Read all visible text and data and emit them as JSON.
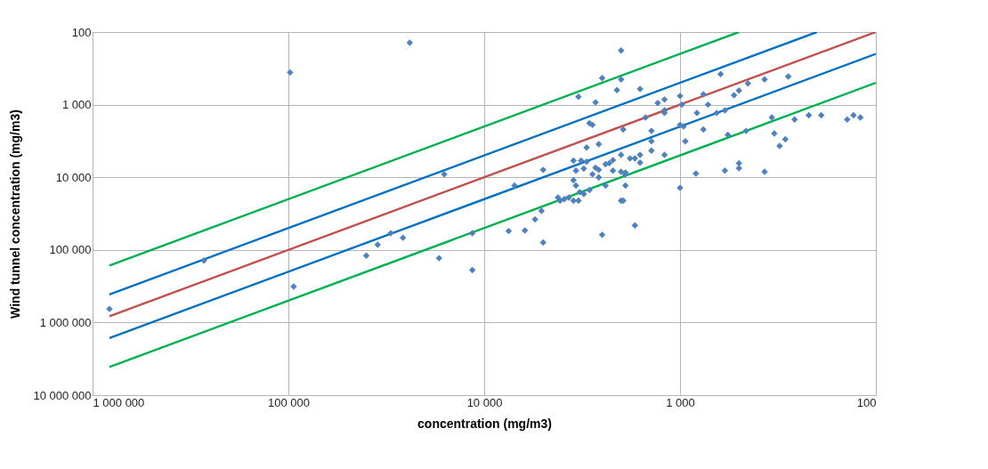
{
  "chart_data": {
    "type": "scatter",
    "xlabel": "concentration (mg/m3)",
    "ylabel": "Wind tunnel concentration (mg/m3)",
    "log": "xy",
    "grid": true,
    "xlim": [
      1000000,
      100
    ],
    "ylim": [
      10000000,
      100
    ],
    "xticks": [
      {
        "value": 1000000,
        "label": "1 000 000"
      },
      {
        "value": 100000,
        "label": "100 000"
      },
      {
        "value": 10000,
        "label": "10 000"
      },
      {
        "value": 1000,
        "label": "1 000"
      },
      100
    ],
    "yticks": [
      100,
      {
        "value": 1000,
        "label": "1 000"
      },
      {
        "value": 10000,
        "label": "10 000"
      },
      {
        "value": 100000,
        "label": "100 000"
      },
      {
        "value": 1000000,
        "label": "1 000 000"
      },
      {
        "value": 10000000,
        "label": "10 000 000"
      }
    ],
    "series": [
      {
        "type": "line",
        "color": "#00b050",
        "x": [
          820000,
          500
        ],
        "values": [
          164000,
          100
        ]
      },
      {
        "type": "line",
        "color": "#0070c0",
        "x": [
          820000,
          200
        ],
        "values": [
          410000,
          100
        ]
      },
      {
        "type": "line",
        "color": "#c0504d",
        "x": [
          820000,
          100
        ],
        "values": [
          820000,
          100
        ]
      },
      {
        "type": "line",
        "color": "#0070c0",
        "x": [
          820000,
          100
        ],
        "values": [
          1640000,
          200
        ]
      },
      {
        "type": "line",
        "color": "#00b050",
        "x": [
          820000,
          100
        ],
        "values": [
          4100000,
          500
        ]
      },
      {
        "marker": "diamond",
        "color": "#4f81bd",
        "x": [
          820000,
          270000,
          98000,
          94000,
          24000,
          40000,
          35000,
          30000,
          26000,
          17000,
          16000,
          11500,
          11500,
          7500,
          7000,
          6200,
          5500,
          5100,
          5000,
          5000,
          4200,
          4100,
          3900,
          3700,
          3500,
          3300,
          3500,
          3400,
          3250,
          3100,
          3500,
          3400,
          3200,
          3100,
          3000,
          3300,
          3000,
          2900,
          2900,
          2800,
          2800,
          2700,
          2700,
          2600,
          2600,
          2600,
          2500,
          2400,
          2400,
          2300,
          2200,
          2200,
          2500,
          2100,
          2000,
          2000,
          1950,
          2000,
          1900,
          1900,
          2000,
          1900,
          2000,
          1950,
          1700,
          1800,
          1700,
          1600,
          1600,
          1600,
          1500,
          1400,
          1400,
          1400,
          1300,
          1200,
          1200,
          1200,
          1200,
          1000,
          1000,
          1000,
          980,
          960,
          940,
          820,
          830,
          760,
          760,
          720,
          650,
          620,
          590,
          590,
          570,
          530,
          500,
          500,
          500,
          460,
          450,
          370,
          370,
          340,
          330,
          310,
          290,
          280,
          260,
          220,
          190,
          140,
          130,
          120
        ],
        "values": [
          650000,
          140000,
          360,
          320000,
          140,
          120000,
          85000,
          59000,
          68000,
          130000,
          9100,
          59000,
          190000,
          55000,
          13000,
          54000,
          38000,
          29000,
          79000,
          7900,
          19000,
          21000,
          20000,
          19000,
          21000,
          21000,
          11000,
          13000,
          16000,
          17000,
          5900,
          8100,
          5900,
          7600,
          6100,
          780,
          3900,
          15000,
          1800,
          1900,
          9100,
          7400,
          930,
          10000,
          3500,
          7900,
          430,
          13000,
          6600,
          6400,
          8100,
          5800,
          62000,
          630,
          180,
          450,
          2200,
          8400,
          9100,
          8600,
          4900,
          13000,
          21000,
          21000,
          46000,
          5500,
          5500,
          610,
          4900,
          6300,
          1500,
          2300,
          3200,
          4300,
          950,
          850,
          1200,
          1300,
          4900,
          760,
          1900,
          14000,
          1000,
          2000,
          3200,
          1300,
          8900,
          720,
          2200,
          1000,
          1300,
          380,
          8100,
          1200,
          2600,
          740,
          640,
          7500,
          6400,
          2300,
          510,
          450,
          8400,
          1500,
          2500,
          3700,
          3000,
          410,
          1600,
          1400,
          1400,
          1600,
          1400,
          1500
        ]
      }
    ]
  }
}
